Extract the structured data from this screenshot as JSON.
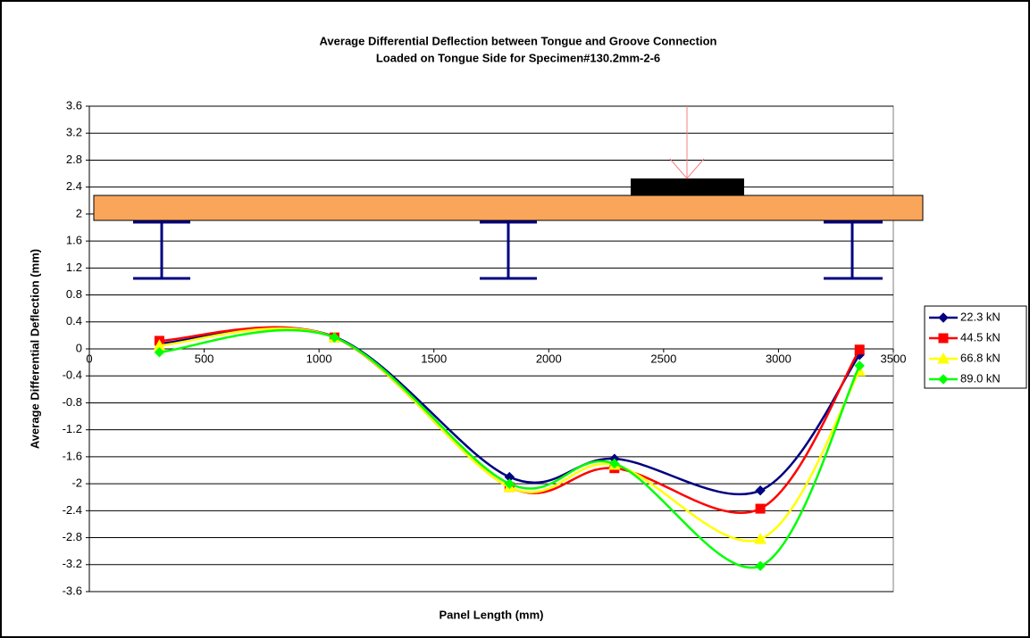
{
  "chart_data": {
    "type": "line",
    "title": [
      "Average Differential Deflection between Tongue and Groove Connection",
      "Loaded on Tongue Side for Specimen#130.2mm-2-6"
    ],
    "x_label": "Panel Length (mm)",
    "y_label": "Average Differential Deflection (mm)",
    "x": [
      305,
      1067,
      1829,
      2286,
      2921,
      3353
    ],
    "series": [
      {
        "name": "22.3 kN",
        "color": "#000080",
        "marker": "diamond",
        "values": [
          0.08,
          0.18,
          -1.9,
          -1.63,
          -2.1,
          -0.09
        ]
      },
      {
        "name": "44.5 kN",
        "color": "#ff0000",
        "marker": "square",
        "values": [
          0.12,
          0.17,
          -2.05,
          -1.77,
          -2.37,
          -0.01
        ]
      },
      {
        "name": "66.8 kN",
        "color": "#ffff00",
        "marker": "triangle",
        "values": [
          0.05,
          0.17,
          -2.05,
          -1.72,
          -2.82,
          -0.33
        ]
      },
      {
        "name": "89.0 kN",
        "color": "#00ff00",
        "marker": "diamond",
        "values": [
          -0.05,
          0.17,
          -2.0,
          -1.7,
          -3.22,
          -0.25
        ]
      }
    ],
    "xlim": [
      0,
      3500
    ],
    "xticks": [
      0,
      500,
      1000,
      1500,
      2000,
      2500,
      3000,
      3500
    ],
    "ylim": [
      -3.6,
      3.6
    ],
    "yticks": [
      -3.6,
      -3.2,
      -2.8,
      -2.4,
      -2,
      -1.6,
      -1.2,
      -0.8,
      -0.4,
      0,
      0.4,
      0.8,
      1.2,
      1.6,
      2,
      2.4,
      2.8,
      3.2,
      3.6
    ],
    "grid": true,
    "legend": "right",
    "smooth": true
  }
}
